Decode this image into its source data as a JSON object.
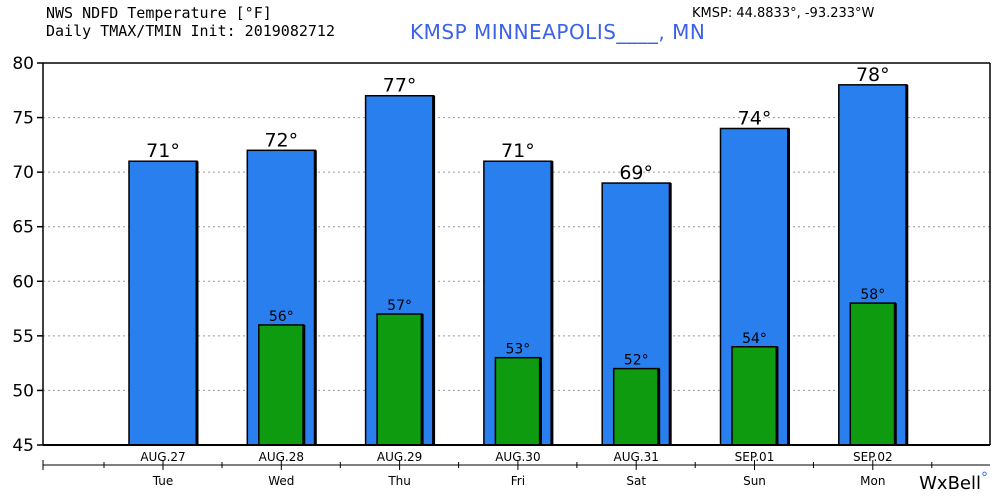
{
  "header": {
    "line1": "NWS NDFD Temperature [°F]",
    "line2": "Daily TMAX/TMIN Init: 2019082712",
    "station": "KMSP MINNEAPOLIS____, MN",
    "coords": "KMSP: 44.8833°, -93.233°W"
  },
  "branding": {
    "text": "WxBell",
    "dot": "°"
  },
  "colors": {
    "tmax": "#2a7fef",
    "tmin": "#0f9b0f",
    "outline": "#000000",
    "grid": "#999999",
    "station": "#3a63e8"
  },
  "chart_data": {
    "type": "bar",
    "categories": [
      "AUG.27",
      "AUG.28",
      "AUG.29",
      "AUG.30",
      "AUG.31",
      "SEP.01",
      "SEP.02"
    ],
    "weekdays": [
      "Tue",
      "Wed",
      "Thu",
      "Fri",
      "Sat",
      "Sun",
      "Mon"
    ],
    "series": [
      {
        "name": "TMAX",
        "values": [
          71,
          72,
          77,
          71,
          69,
          74,
          78
        ],
        "labels": [
          "71°",
          "72°",
          "77°",
          "71°",
          "69°",
          "74°",
          "78°"
        ]
      },
      {
        "name": "TMIN",
        "values": [
          null,
          56,
          57,
          53,
          52,
          54,
          58
        ],
        "labels": [
          "",
          "56°",
          "57°",
          "53°",
          "52°",
          "54°",
          "58°"
        ]
      }
    ],
    "ylim": [
      45,
      80
    ],
    "yticks": [
      45,
      50,
      55,
      60,
      65,
      70,
      75,
      80
    ],
    "ytick_labels": [
      "45",
      "50",
      "55",
      "60",
      "65",
      "70",
      "75",
      "80"
    ],
    "grid": true
  }
}
